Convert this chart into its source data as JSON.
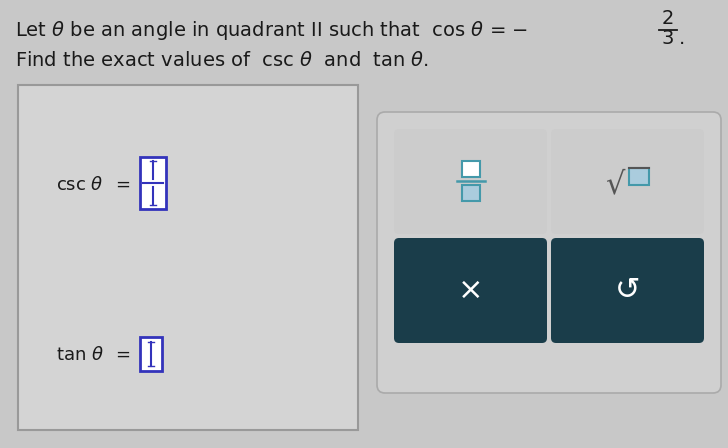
{
  "bg_color": "#c8c8c8",
  "text_color": "#1a1a1a",
  "left_box_bg": "#d4d4d4",
  "left_box_border": "#999999",
  "right_box_bg": "#d0d0d0",
  "right_box_border": "#999999",
  "input_box_color": "#3333bb",
  "input_box_fill": "#ffffff",
  "dark_button_color": "#1a3d4a",
  "button_text_color": "#ffffff",
  "light_button_bg": "#cccccc",
  "font_size_main": 14,
  "font_size_label": 13,
  "frac_num": "2",
  "frac_den": "3"
}
